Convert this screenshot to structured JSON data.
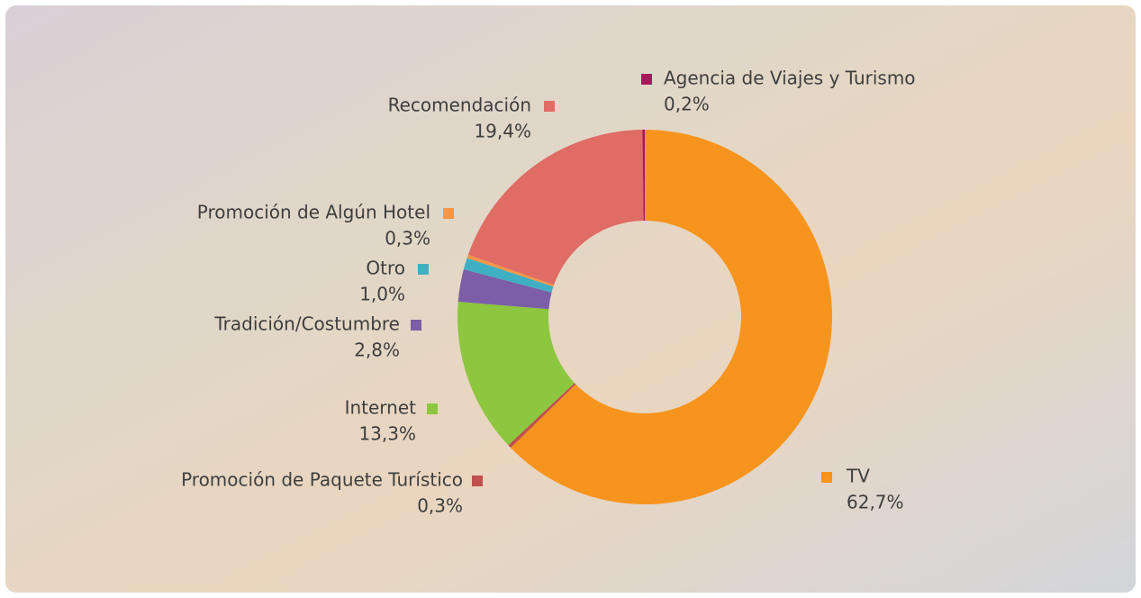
{
  "chart_data": {
    "type": "donut",
    "categories": [
      "TV",
      "Promoción de Paquete Turístico",
      "Internet",
      "Tradición/Costumbre",
      "Otro",
      "Promoción de Algún Hotel",
      "Recomendación",
      "Agencia de Viajes y Turismo"
    ],
    "values": [
      62.7,
      0.3,
      13.3,
      2.8,
      1.0,
      0.3,
      19.4,
      0.2
    ],
    "value_labels": [
      "62,7%",
      "0,3%",
      "13,3%",
      "2,8%",
      "1,0%",
      "0,3%",
      "19,4%",
      "0,2%"
    ],
    "colors": [
      "#f7941d",
      "#c0504d",
      "#8dc63f",
      "#7b5ea7",
      "#3fb0c4",
      "#f79646",
      "#e06c66",
      "#a6195b"
    ]
  }
}
